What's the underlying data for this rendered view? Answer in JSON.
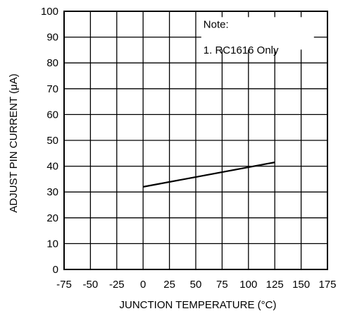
{
  "chart_data": {
    "type": "line",
    "title": "",
    "xlabel": "JUNCTION TEMPERATURE (°C)",
    "ylabel": "ADJUST PIN CURRENT (μA)",
    "xlim": [
      -75,
      175
    ],
    "ylim": [
      0,
      100
    ],
    "x_ticks": [
      -75,
      -50,
      -25,
      0,
      25,
      50,
      75,
      100,
      125,
      150,
      175
    ],
    "x_tick_labels": [
      "-75",
      "-50",
      "-25",
      "0",
      "25",
      "50",
      "75",
      "100",
      "125",
      "150",
      "175"
    ],
    "y_ticks": [
      0,
      10,
      20,
      30,
      40,
      50,
      60,
      70,
      80,
      90,
      100
    ],
    "y_tick_labels": [
      "0",
      "10",
      "20",
      "30",
      "40",
      "50",
      "60",
      "70",
      "80",
      "90",
      "100"
    ],
    "grid": true,
    "series": [
      {
        "x": [
          0,
          125
        ],
        "y": [
          32,
          41.5
        ]
      }
    ],
    "annotations": {
      "note_title": "Note:",
      "note_line": "1. RC1616 Only"
    }
  }
}
